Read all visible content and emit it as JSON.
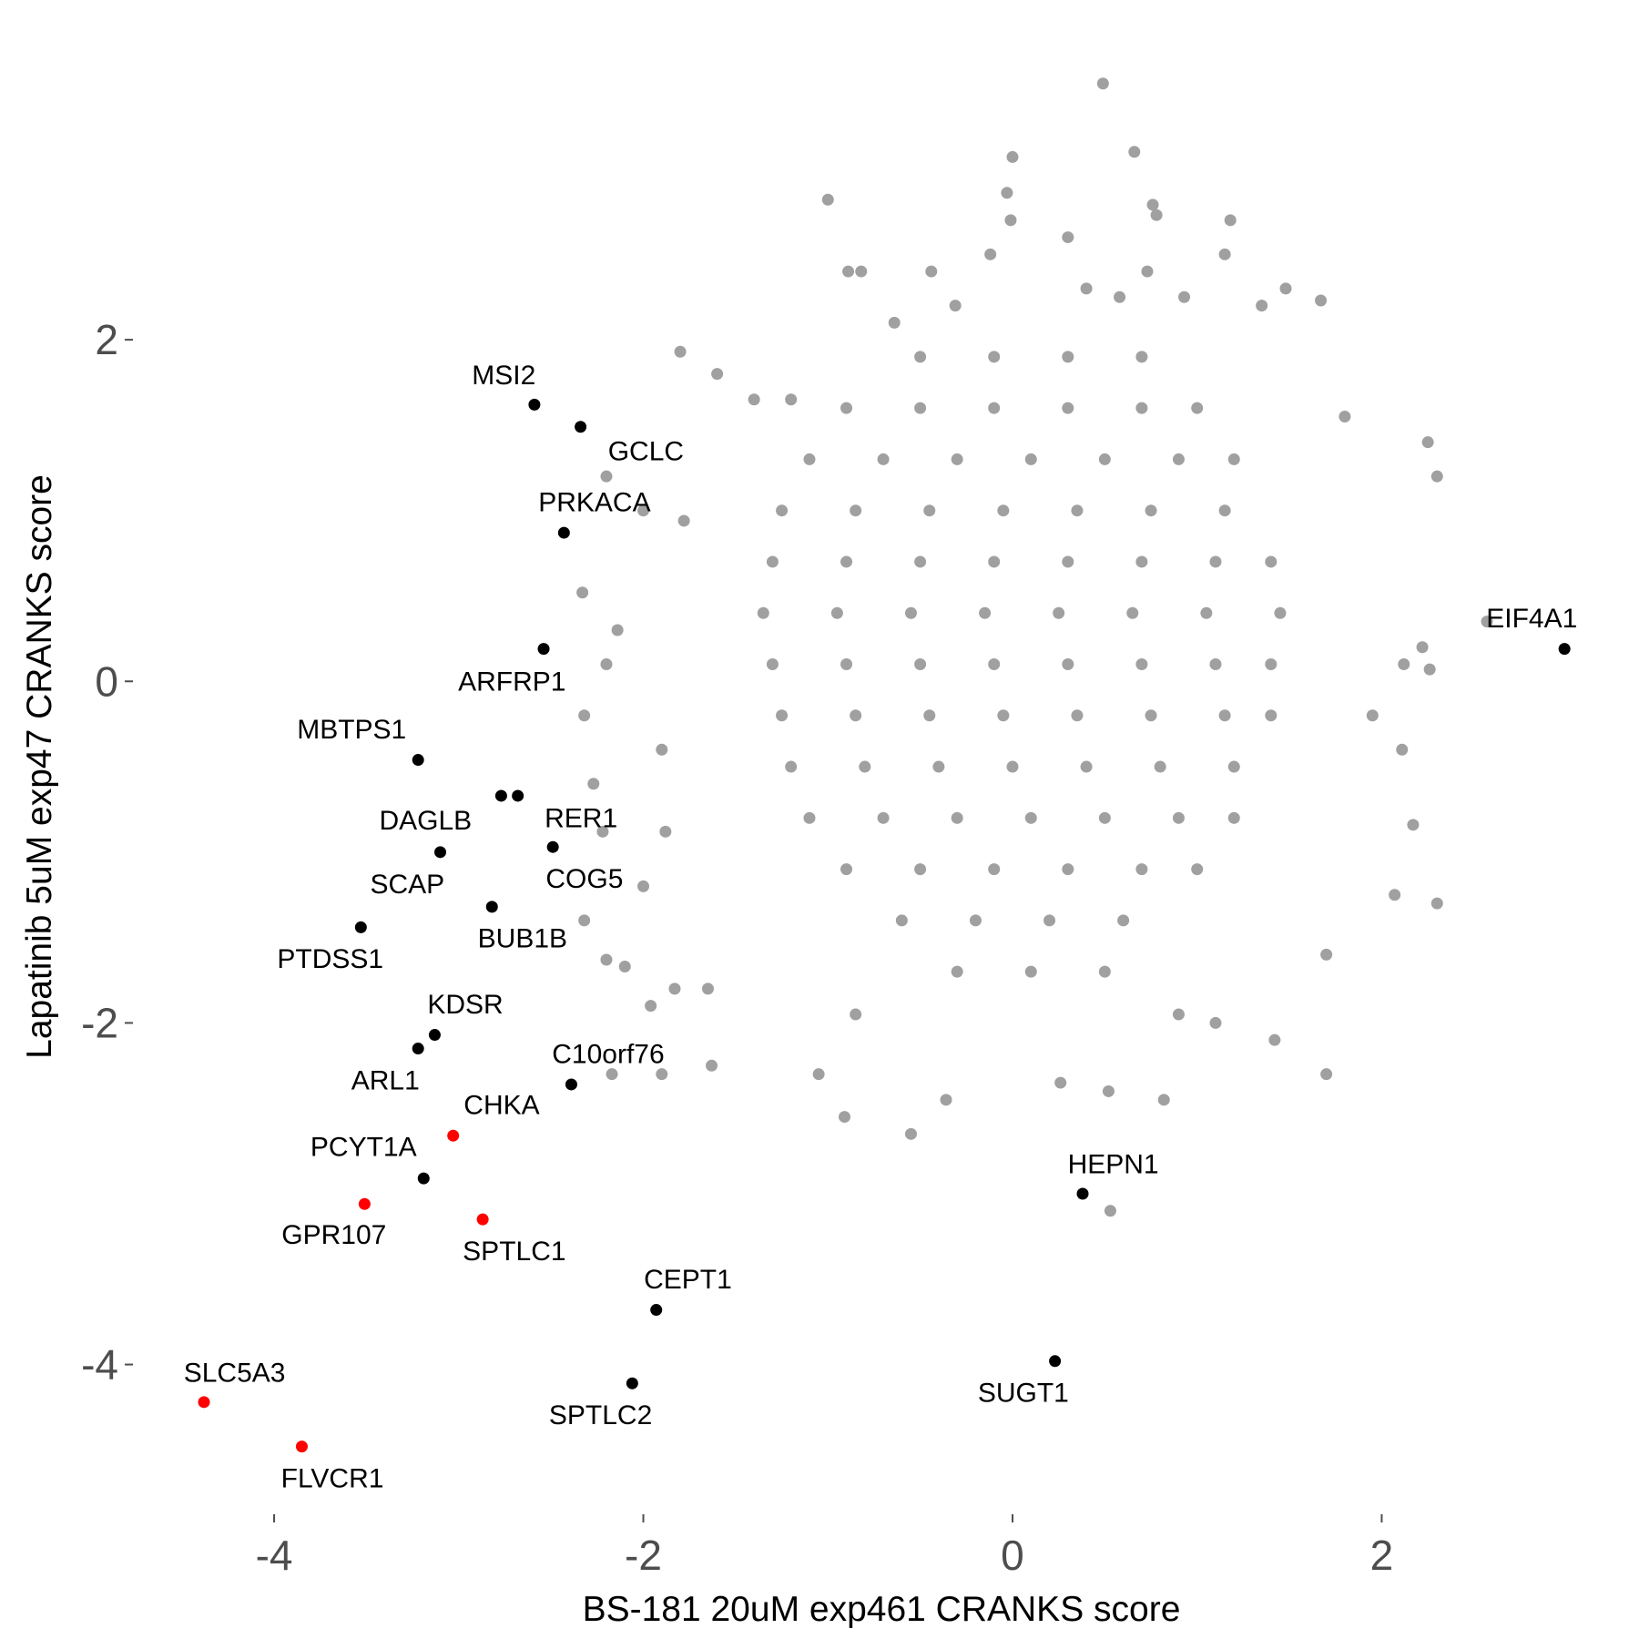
{
  "chart_data": {
    "type": "scatter",
    "x_label": "BS-181 20uM exp461 CRANKS score",
    "y_label": "Lapatinib 5uM exp47 CRANKS score",
    "xlim": [
      -4.75,
      3.3
    ],
    "ylim": [
      -4.85,
      3.6
    ],
    "xticks": [
      -4,
      -2,
      0,
      2
    ],
    "yticks": [
      -4,
      -2,
      0,
      2
    ],
    "grid": false,
    "series": [
      {
        "color": "#a0a0a0",
        "x": [
          0.49,
          0.66,
          0,
          -1.0,
          0.76,
          -0.03,
          0.78,
          -0.01,
          0.3,
          1.18,
          1.15,
          -0.12,
          -0.44,
          -0.89,
          -0.82,
          0.4,
          0.73,
          0.93,
          1.48,
          1.35,
          -0.31,
          -0.64,
          1.67,
          0.58,
          -1.8,
          -1.6,
          -1.4,
          -1.2,
          1.8,
          2.25,
          2.3,
          2.57,
          2.22,
          2.12,
          2.26,
          1.95,
          2.11,
          2.17,
          2.07,
          2.3,
          1.7,
          -2.0,
          -1.78,
          -2.2,
          -2.33,
          -2.14,
          -2.2,
          -2.32,
          -1.9,
          -2.27,
          -2.22,
          -1.88,
          -2.0,
          -2.32,
          -2.2,
          -2.1,
          -1.96,
          -1.83,
          -2.17,
          -1.9,
          -1.65,
          -1.63,
          -1.05,
          -0.91,
          -0.36,
          0.26,
          0.52,
          0.82,
          1.42,
          1.7,
          0.53,
          -0.55,
          -0.85,
          1.1,
          0.9,
          -0.5,
          -0.1,
          0.3,
          0.7,
          -0.9,
          -0.5,
          -0.1,
          0.3,
          0.7,
          1.0,
          -1.1,
          -0.7,
          -0.3,
          0.1,
          0.5,
          0.9,
          1.2,
          -1.25,
          -0.85,
          -0.45,
          -0.05,
          0.35,
          0.75,
          1.15,
          -1.3,
          -0.9,
          -0.5,
          -0.1,
          0.3,
          0.7,
          1.1,
          1.4,
          -1.35,
          -0.95,
          -0.55,
          -0.15,
          0.25,
          0.65,
          1.05,
          1.45,
          -1.3,
          -0.9,
          -0.5,
          -0.1,
          0.3,
          0.7,
          1.1,
          1.4,
          -1.25,
          -0.85,
          -0.45,
          -0.05,
          0.35,
          0.75,
          1.15,
          1.4,
          -1.2,
          -0.8,
          -0.4,
          0.0,
          0.4,
          0.8,
          1.2,
          -1.1,
          -0.7,
          -0.3,
          0.1,
          0.5,
          0.9,
          1.2,
          -0.9,
          -0.5,
          -0.1,
          0.3,
          0.7,
          1.0,
          -0.6,
          -0.2,
          0.2,
          0.6,
          -0.3,
          0.1,
          0.5
        ],
        "values": [
          3.5,
          3.1,
          3.07,
          2.82,
          2.79,
          2.86,
          2.73,
          2.7,
          2.6,
          2.7,
          2.5,
          2.5,
          2.4,
          2.4,
          2.4,
          2.3,
          2.4,
          2.25,
          2.3,
          2.2,
          2.2,
          2.1,
          2.23,
          2.25,
          1.93,
          1.8,
          1.65,
          1.65,
          1.55,
          1.4,
          1.2,
          0.35,
          0.2,
          0.1,
          0.07,
          -0.2,
          -0.4,
          -0.84,
          -1.25,
          -1.3,
          -1.6,
          1.0,
          0.94,
          1.2,
          0.52,
          0.3,
          0.1,
          -0.2,
          -0.4,
          -0.6,
          -0.88,
          -0.88,
          -1.2,
          -1.4,
          -1.63,
          -1.67,
          -1.9,
          -1.8,
          -2.3,
          -2.3,
          -1.8,
          -2.25,
          -2.3,
          -2.55,
          -2.45,
          -2.35,
          -2.4,
          -2.45,
          -2.1,
          -2.3,
          -3.1,
          -2.65,
          -1.95,
          -2.0,
          -1.95,
          1.9,
          1.9,
          1.9,
          1.9,
          1.6,
          1.6,
          1.6,
          1.6,
          1.6,
          1.6,
          1.3,
          1.3,
          1.3,
          1.3,
          1.3,
          1.3,
          1.3,
          1.0,
          1.0,
          1.0,
          1.0,
          1.0,
          1.0,
          1.0,
          0.7,
          0.7,
          0.7,
          0.7,
          0.7,
          0.7,
          0.7,
          0.7,
          0.4,
          0.4,
          0.4,
          0.4,
          0.4,
          0.4,
          0.4,
          0.4,
          0.1,
          0.1,
          0.1,
          0.1,
          0.1,
          0.1,
          0.1,
          0.1,
          -0.2,
          -0.2,
          -0.2,
          -0.2,
          -0.2,
          -0.2,
          -0.2,
          -0.2,
          -0.5,
          -0.5,
          -0.5,
          -0.5,
          -0.5,
          -0.5,
          -0.5,
          -0.8,
          -0.8,
          -0.8,
          -0.8,
          -0.8,
          -0.8,
          -0.8,
          -1.1,
          -1.1,
          -1.1,
          -1.1,
          -1.1,
          -1.1,
          -1.4,
          -1.4,
          -1.4,
          -1.4,
          -1.7,
          -1.7,
          -1.7
        ]
      },
      {
        "color": "#000000",
        "labels": [
          "MSI2",
          "GCLC",
          "PRKACA",
          "ARFRP1",
          "EIF4A1",
          "MBTPS1",
          "SCAP",
          "RER1",
          "DAGLB",
          "COG5",
          "BUB1B",
          "PTDSS1",
          "KDSR",
          "ARL1",
          "C10orf76",
          "PCYT1A",
          "HEPN1",
          "CEPT1",
          "SUGT1",
          "SPTLC2"
        ],
        "x": [
          -2.59,
          -2.34,
          -2.43,
          -2.54,
          2.99,
          -3.22,
          -2.77,
          -2.68,
          -3.1,
          -2.49,
          -2.82,
          -3.53,
          -3.13,
          -3.22,
          -2.39,
          -3.19,
          0.38,
          -1.93,
          0.23,
          -2.06
        ],
        "values": [
          1.62,
          1.49,
          0.87,
          0.19,
          0.19,
          -0.46,
          -0.67,
          -0.67,
          -1.0,
          -0.97,
          -1.32,
          -1.44,
          -2.07,
          -2.15,
          -2.36,
          -2.91,
          -3.0,
          -3.68,
          -3.98,
          -4.11
        ]
      },
      {
        "color": "#ff0000",
        "labels": [
          "CHKA",
          "GPR107",
          "SPTLC1",
          "SLC5A3",
          "FLVCR1"
        ],
        "x": [
          -3.03,
          -3.51,
          -2.87,
          -4.38,
          -3.85
        ],
        "values": [
          -2.66,
          -3.06,
          -3.15,
          -4.22,
          -4.48
        ]
      }
    ]
  }
}
